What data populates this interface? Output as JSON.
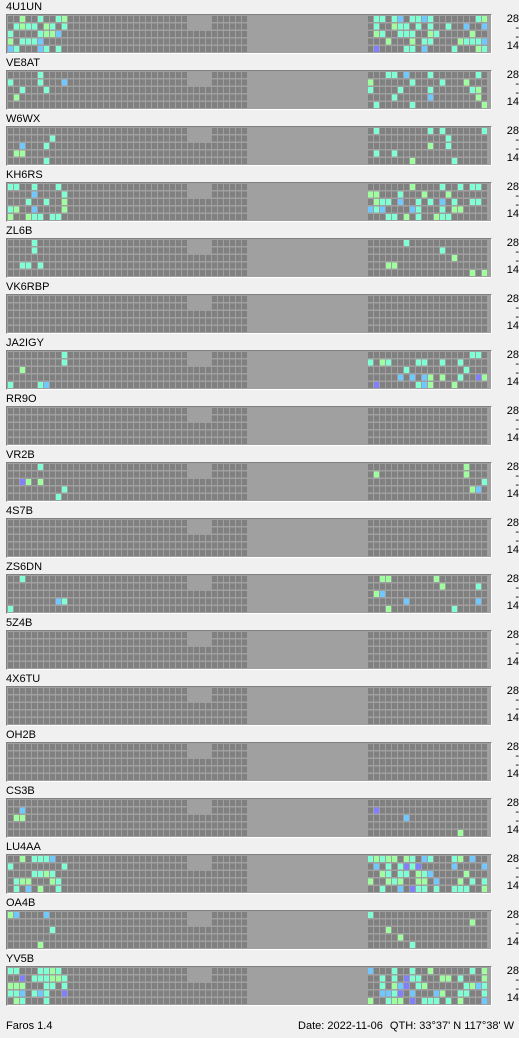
{
  "app": {
    "version_label": "Faros 1.4"
  },
  "status": {
    "date_label": "Date: 2022-11-06",
    "qth_label": "QTH: 33°37' N  117°38' W"
  },
  "axis": {
    "top_band": "28",
    "bottom_band": "14",
    "tick_mark": "-"
  },
  "colors": {
    "background": "#f0f0f0",
    "grid_bg": "#a0a0a0",
    "cell_off": "#808080",
    "active_color": "#7fffd4",
    "strong_color": "#9fff9f",
    "weak_color": "#6fc8ff",
    "alt_color": "#8080ff"
  },
  "beacons": [
    {
      "callsign": "4U1UN",
      "activity": "high"
    },
    {
      "callsign": "VE8AT",
      "activity": "medium"
    },
    {
      "callsign": "W6WX",
      "activity": "low"
    },
    {
      "callsign": "KH6RS",
      "activity": "high"
    },
    {
      "callsign": "ZL6B",
      "activity": "low"
    },
    {
      "callsign": "VK6RBP",
      "activity": "none"
    },
    {
      "callsign": "JA2IGY",
      "activity": "medium"
    },
    {
      "callsign": "RR9O",
      "activity": "none"
    },
    {
      "callsign": "VR2B",
      "activity": "low"
    },
    {
      "callsign": "4S7B",
      "activity": "none"
    },
    {
      "callsign": "ZS6DN",
      "activity": "low"
    },
    {
      "callsign": "5Z4B",
      "activity": "none"
    },
    {
      "callsign": "4X6TU",
      "activity": "none"
    },
    {
      "callsign": "OH2B",
      "activity": "none"
    },
    {
      "callsign": "CS3B",
      "activity": "low"
    },
    {
      "callsign": "LU4AA",
      "activity": "high"
    },
    {
      "callsign": "OA4B",
      "activity": "low"
    },
    {
      "callsign": "YV5B",
      "activity": "high"
    }
  ]
}
